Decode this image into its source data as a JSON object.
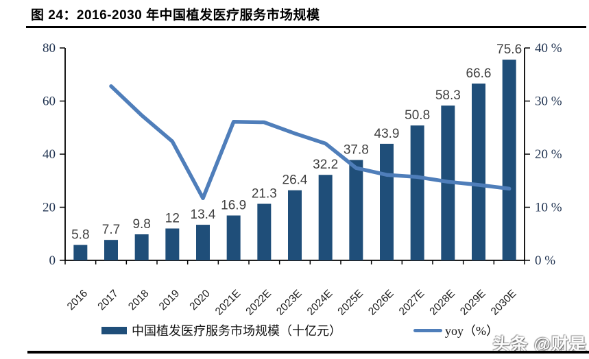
{
  "title": "图 24：2016-2030 年中国植发医疗服务市场规模",
  "watermark": "头条 @财是",
  "colors": {
    "bar": "#1F4E79",
    "line": "#4F7EBA",
    "axis": "#000000",
    "axis_label": "#1F3250",
    "data_label": "#3F3F3F",
    "x_label": "#1a1a1a"
  },
  "legend": {
    "market_label": "中国植发医疗服务市场规模（十亿元）",
    "yoy_label": "yoy（%）"
  },
  "chart_data": {
    "type": "bar+line combo",
    "title": "图 24：2016-2030 年中国植发医疗服务市场规模",
    "categories": [
      "2016",
      "2017",
      "2018",
      "2019",
      "2020",
      "2021E",
      "2022E",
      "2023E",
      "2024E",
      "2025E",
      "2026E",
      "2027E",
      "2028E",
      "2029E",
      "2030E"
    ],
    "series": [
      {
        "name": "中国植发医疗服务市场规模（十亿元）",
        "type": "bar",
        "axis": "left",
        "color": "#1F4E79",
        "values": [
          5.8,
          7.7,
          9.8,
          12,
          13.4,
          16.9,
          21.3,
          26.4,
          32.2,
          37.8,
          43.9,
          50.8,
          58.3,
          66.6,
          75.6
        ],
        "labels": [
          "5.8",
          "7.7",
          "9.8",
          "12",
          "13.4",
          "16.9",
          "21.3",
          "26.4",
          "32.2",
          "37.8",
          "43.9",
          "50.8",
          "58.3",
          "66.6",
          "75.6"
        ]
      },
      {
        "name": "yoy（%）",
        "type": "line",
        "axis": "right",
        "color": "#4F7EBA",
        "values": [
          null,
          32.8,
          27.3,
          22.4,
          11.7,
          26.1,
          26.0,
          23.9,
          22.0,
          17.4,
          16.1,
          15.7,
          14.8,
          14.2,
          13.5
        ]
      }
    ],
    "left_axis": {
      "min": 0,
      "max": 80,
      "ticks": [
        "0",
        "20",
        "40",
        "60",
        "80"
      ]
    },
    "right_axis": {
      "min": 0,
      "max": 40,
      "ticks": [
        "0 %",
        "10 %",
        "20 %",
        "30 %",
        "40 %"
      ]
    },
    "grid": false,
    "legend_position": "bottom"
  }
}
